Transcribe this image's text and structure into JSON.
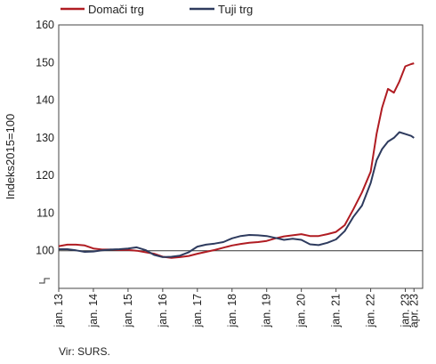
{
  "chart_data": {
    "type": "line",
    "ylabel": "Indeks2015=100",
    "ylim": [
      90,
      160
    ],
    "yticks": [
      100,
      110,
      120,
      130,
      140,
      150,
      160
    ],
    "y_break_marker": true,
    "reference_line": 100,
    "xlim": [
      2013.0,
      2023.5
    ],
    "xticks": [
      {
        "x": 2013.0,
        "label": "jan. 13"
      },
      {
        "x": 2014.0,
        "label": "jan. 14"
      },
      {
        "x": 2015.0,
        "label": "jan. 15"
      },
      {
        "x": 2016.0,
        "label": "jan. 16"
      },
      {
        "x": 2017.0,
        "label": "jan. 17"
      },
      {
        "x": 2018.0,
        "label": "jan. 18"
      },
      {
        "x": 2019.0,
        "label": "jan. 19"
      },
      {
        "x": 2020.0,
        "label": "jan. 20"
      },
      {
        "x": 2021.0,
        "label": "jan. 21"
      },
      {
        "x": 2022.0,
        "label": "jan. 22"
      },
      {
        "x": 2023.0,
        "label": "jan. 23"
      },
      {
        "x": 2023.25,
        "label": "apr. 23"
      }
    ],
    "legend_position": "top",
    "series": [
      {
        "name": "Domači trg",
        "color": "#b01c22",
        "x": [
          2013.0,
          2013.25,
          2013.5,
          2013.75,
          2014.0,
          2014.25,
          2014.5,
          2014.75,
          2015.0,
          2015.25,
          2015.5,
          2015.75,
          2016.0,
          2016.25,
          2016.5,
          2016.75,
          2017.0,
          2017.25,
          2017.5,
          2017.75,
          2018.0,
          2018.25,
          2018.5,
          2018.75,
          2019.0,
          2019.25,
          2019.5,
          2019.75,
          2020.0,
          2020.25,
          2020.5,
          2020.75,
          2021.0,
          2021.25,
          2021.5,
          2021.75,
          2022.0,
          2022.17,
          2022.33,
          2022.5,
          2022.67,
          2022.83,
          2023.0,
          2023.17,
          2023.25
        ],
        "y": [
          101.2,
          101.6,
          101.6,
          101.4,
          100.6,
          100.3,
          100.3,
          100.2,
          100.2,
          100.0,
          99.6,
          99.2,
          98.4,
          98.1,
          98.3,
          98.6,
          99.2,
          99.7,
          100.2,
          100.8,
          101.4,
          101.8,
          102.1,
          102.3,
          102.6,
          103.3,
          103.8,
          104.1,
          104.4,
          103.9,
          103.9,
          104.4,
          105.0,
          106.8,
          111.0,
          115.5,
          121.0,
          131.0,
          138.0,
          143.0,
          142.0,
          145.0,
          149.0,
          149.6,
          149.8
        ]
      },
      {
        "name": "Tuji trg",
        "color": "#2e3b5e",
        "x": [
          2013.0,
          2013.25,
          2013.5,
          2013.75,
          2014.0,
          2014.25,
          2014.5,
          2014.75,
          2015.0,
          2015.25,
          2015.5,
          2015.75,
          2016.0,
          2016.25,
          2016.5,
          2016.75,
          2017.0,
          2017.25,
          2017.5,
          2017.75,
          2018.0,
          2018.25,
          2018.5,
          2018.75,
          2019.0,
          2019.25,
          2019.5,
          2019.75,
          2020.0,
          2020.25,
          2020.5,
          2020.75,
          2021.0,
          2021.25,
          2021.5,
          2021.75,
          2022.0,
          2022.17,
          2022.33,
          2022.5,
          2022.67,
          2022.83,
          2023.0,
          2023.17,
          2023.25
        ],
        "y": [
          100.4,
          100.4,
          100.1,
          99.7,
          99.8,
          100.1,
          100.3,
          100.4,
          100.6,
          100.9,
          100.2,
          98.9,
          98.3,
          98.4,
          98.7,
          99.6,
          101.1,
          101.6,
          101.9,
          102.3,
          103.3,
          103.9,
          104.2,
          104.1,
          103.9,
          103.4,
          102.9,
          103.2,
          102.9,
          101.7,
          101.5,
          102.1,
          103.0,
          105.2,
          109.0,
          112.0,
          118.0,
          124.0,
          127.0,
          129.0,
          130.0,
          131.5,
          131.0,
          130.5,
          130.0
        ]
      }
    ]
  },
  "source": "Vir: SURS."
}
